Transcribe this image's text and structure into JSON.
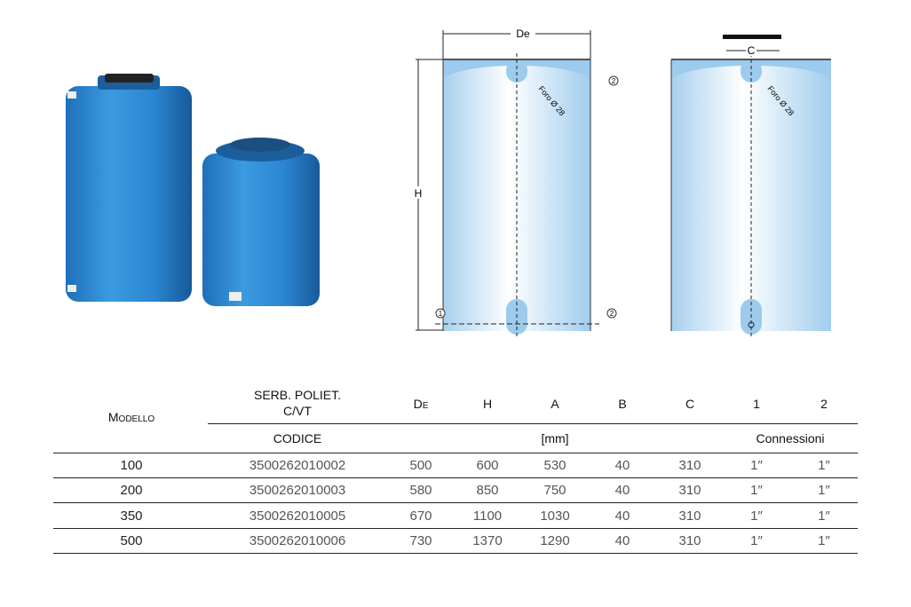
{
  "diagram": {
    "dim_de": "De",
    "dim_h": "H",
    "dim_c": "C",
    "hole_label": "Foro Ø 28",
    "connection_1": "1",
    "connection_2": "2"
  },
  "table": {
    "headers": {
      "model": "Modello",
      "product_line1": "SERB. POLIET.",
      "product_line2": "C/VT",
      "code": "CODICE",
      "de": "De",
      "h": "H",
      "a": "A",
      "b": "B",
      "c": "C",
      "conn1": "1",
      "conn2": "2",
      "unit": "[mm]",
      "connections": "Connessioni"
    },
    "rows": [
      {
        "model": "100",
        "code": "3500262010002",
        "de": "500",
        "h": "600",
        "a": "530",
        "b": "40",
        "c": "310",
        "conn1": "1″",
        "conn2": "1″"
      },
      {
        "model": "200",
        "code": "3500262010003",
        "de": "580",
        "h": "850",
        "a": "750",
        "b": "40",
        "c": "310",
        "conn1": "1″",
        "conn2": "1″"
      },
      {
        "model": "350",
        "code": "3500262010005",
        "de": "670",
        "h": "1100",
        "a": "1030",
        "b": "40",
        "c": "310",
        "conn1": "1″",
        "conn2": "1″"
      },
      {
        "model": "500",
        "code": "3500262010006",
        "de": "730",
        "h": "1370",
        "a": "1290",
        "b": "40",
        "c": "310",
        "conn1": "1″",
        "conn2": "1″"
      }
    ]
  },
  "colors": {
    "tank_blue": "#2a86d0",
    "diagram_blue": "#9ccbed"
  }
}
